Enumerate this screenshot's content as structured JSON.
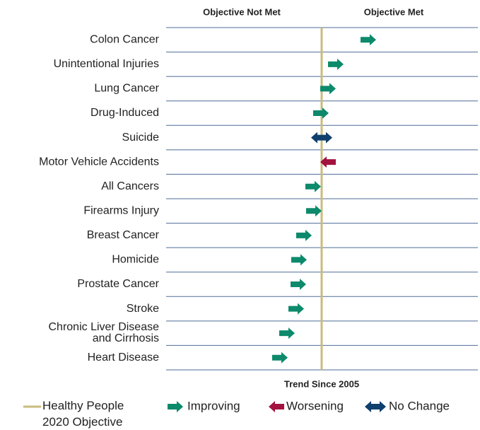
{
  "chart_data": {
    "type": "arrow",
    "header_left": "Objective Not Met",
    "header_right": "Objective Met",
    "x_label": "Trend Since 2005",
    "objective": {
      "name": "Healthy People\n2020 Objective",
      "color": "#c9bb7c",
      "value": 0
    },
    "categories": [
      "Colon Cancer",
      "Unintentional Injuries",
      "Lung Cancer",
      "Drug-Induced",
      "Suicide",
      "Motor Vehicle Accidents",
      "All Cancers",
      "Firearms Injury",
      "Breast Cancer",
      "Homicide",
      "Prostate Cancer",
      "Stroke",
      "Chronic Liver Disease\nand Cirrhosis",
      "Heart Disease"
    ],
    "series": [
      {
        "name": "Improving",
        "color": "#0c8a6b",
        "values": [
          66,
          20,
          9,
          -1,
          null,
          null,
          -12,
          -11,
          -25,
          -32,
          -33,
          -36,
          -49,
          -59
        ]
      },
      {
        "name": "Worsening",
        "color": "#a3133f",
        "values": [
          null,
          null,
          null,
          null,
          null,
          9,
          null,
          null,
          null,
          null,
          null,
          null,
          null,
          null
        ]
      },
      {
        "name": "No Change",
        "color": "#0e3f6e",
        "values": [
          null,
          null,
          null,
          null,
          0,
          null,
          null,
          null,
          null,
          null,
          null,
          null,
          null,
          null
        ]
      }
    ],
    "xlim": [
      -220,
      221
    ]
  }
}
